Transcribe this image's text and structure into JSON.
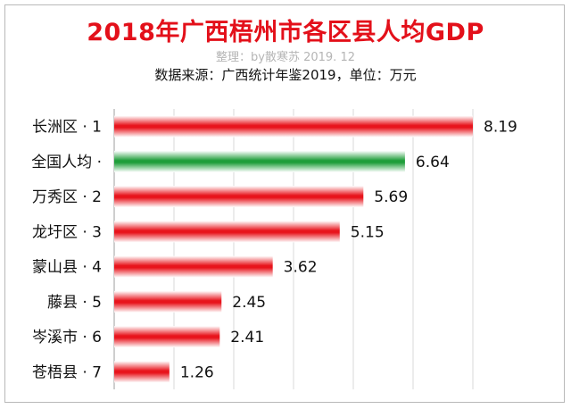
{
  "chart_data": {
    "type": "bar",
    "orientation": "horizontal",
    "title": "2018年广西梧州市各区县人均GDP",
    "credit": "整理：by散寒苏 2019. 12",
    "source": "数据来源：广西统计年鉴2019，单位：万元",
    "categories": [
      "长洲区 · 1",
      "全国人均 ·",
      "万秀区 · 2",
      "龙圩区 · 3",
      "蒙山县 · 4",
      "藤县 · 5",
      "岑溪市 · 6",
      "苍梧县 · 7"
    ],
    "values": [
      8.19,
      6.64,
      5.69,
      5.15,
      3.62,
      2.45,
      2.41,
      1.26
    ],
    "value_labels": [
      "8.19",
      "6.64",
      "5.69",
      "5.15",
      "3.62",
      "2.45",
      "2.41",
      "1.26"
    ],
    "bar_colors": [
      "#e8141c",
      "#1f9e3a",
      "#e8141c",
      "#e8141c",
      "#e8141c",
      "#e8141c",
      "#e8141c",
      "#e8141c"
    ],
    "xlim": [
      0,
      8.19
    ],
    "grid": true,
    "legend": "none"
  }
}
